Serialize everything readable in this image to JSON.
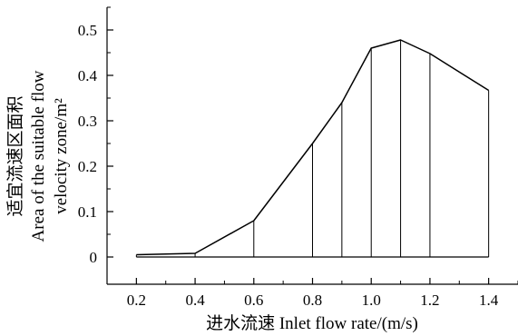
{
  "chart_data": {
    "type": "area",
    "x": [
      0.2,
      0.4,
      0.6,
      0.8,
      0.9,
      1.0,
      1.1,
      1.2,
      1.4
    ],
    "values": [
      0.005,
      0.008,
      0.08,
      0.25,
      0.34,
      0.46,
      0.478,
      0.448,
      0.367
    ],
    "xticks": [
      "0.2",
      "0.4",
      "0.6",
      "0.8",
      "1.0",
      "1.2",
      "1.4"
    ],
    "yticks": [
      "0",
      "0.1",
      "0.2",
      "0.3",
      "0.4",
      "0.5"
    ],
    "xlabel": "进水流速 Inlet flow rate/(m/s)",
    "ylabel_lines": [
      "适宜流速区面积",
      "Area of the suitable flow",
      "velocity zone/m²"
    ],
    "xlim": [
      0.1,
      1.5
    ],
    "ylim": [
      -0.06,
      0.55
    ],
    "grid": false,
    "fill_color": "#ffffff",
    "line_color": "#000000"
  }
}
